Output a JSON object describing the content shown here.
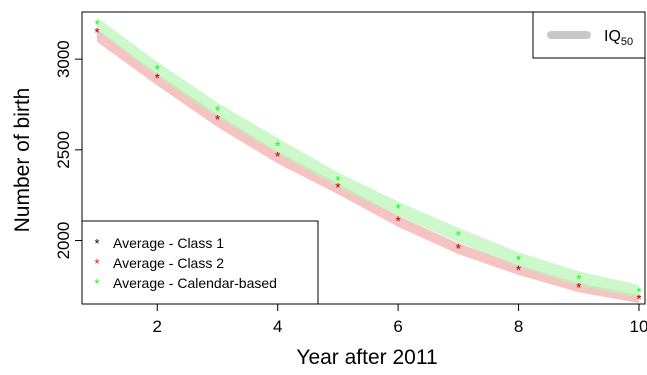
{
  "chart_data": {
    "type": "line",
    "title": "",
    "xlabel": "Year after 2011",
    "ylabel": "Number of birth",
    "xlim": [
      0.75,
      10.1
    ],
    "ylim": [
      1650,
      3260
    ],
    "x_ticks": [
      2,
      4,
      6,
      8,
      10
    ],
    "y_ticks": [
      2000,
      2500,
      3000
    ],
    "x": [
      1,
      2,
      3,
      4,
      5,
      6,
      7,
      8,
      9,
      10
    ],
    "series": [
      {
        "name": "Average - Class 1",
        "color": "#000000",
        "marker": "*",
        "values": [
          3150,
          2900,
          2670,
          2465,
          2295,
          2110,
          1960,
          1840,
          1745,
          1680
        ]
      },
      {
        "name": "Average - Class 2",
        "color": "#ff0000",
        "marker": "*",
        "values": [
          3150,
          2900,
          2670,
          2465,
          2295,
          2110,
          1960,
          1840,
          1745,
          1680
        ]
      },
      {
        "name": "Average - Calendar-based",
        "color": "#00ff00",
        "marker": "*",
        "values": [
          3195,
          2945,
          2720,
          2525,
          2335,
          2180,
          2030,
          1895,
          1790,
          1720
        ]
      }
    ],
    "bands": [
      {
        "name": "Class 2 IQ50",
        "color": "#f4b8b8",
        "upper": [
          3165,
          2920,
          2695,
          2490,
          2315,
          2135,
          1985,
          1865,
          1765,
          1700
        ],
        "lower": [
          3095,
          2855,
          2625,
          2425,
          2255,
          2075,
          1925,
          1810,
          1715,
          1655
        ]
      },
      {
        "name": "Calendar-based IQ50",
        "color": "#b6f5b6",
        "upper": [
          3230,
          2985,
          2760,
          2565,
          2375,
          2215,
          2070,
          1935,
          1830,
          1755
        ],
        "lower": [
          3160,
          2905,
          2680,
          2480,
          2295,
          2135,
          1990,
          1855,
          1750,
          1685
        ]
      }
    ],
    "legend_main": {
      "placement": "bottom-left",
      "entries": [
        "Average - Class 1",
        "Average - Class 2",
        "Average - Calendar-based"
      ]
    },
    "legend_band": {
      "placement": "top-right",
      "label_base": "IQ",
      "label_sub": "50",
      "color": "#c8c8c8"
    }
  }
}
